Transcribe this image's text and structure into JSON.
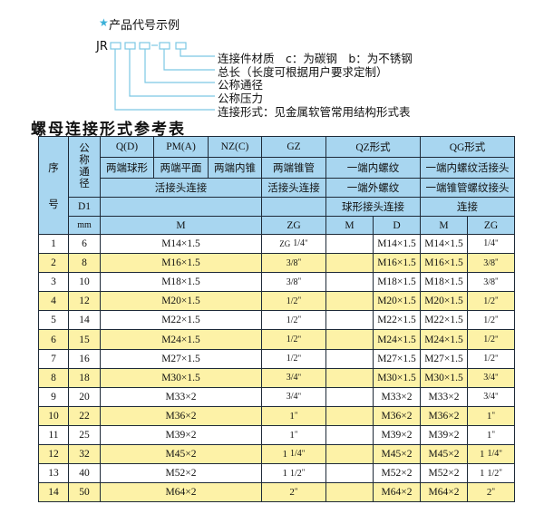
{
  "example": {
    "heading": "产品代号示例",
    "code_prefix": "JR",
    "labels": [
      "连接件材质　c：为碳钢　b：为不锈钢",
      "总长（长度可根据用户要求定制）",
      "公称通径",
      "公称压力",
      "连接形式：见金属软管常用结构形式表"
    ],
    "accent_color": "#3ab0d8"
  },
  "table_title": "螺母连接形式参考表",
  "header": {
    "seq": "序",
    "seq2": "号",
    "dn": "公称通径",
    "d1": "D1",
    "mm": "mm",
    "qd": "Q(D)",
    "pma": "PM(A)",
    "nzc": "NZ(C)",
    "gz": "GZ",
    "qz": "QZ形式",
    "qg": "QG形式",
    "qd_desc": "两端球形",
    "pma_desc": "两端平面",
    "nzc_desc": "两端内锥",
    "gz_desc": "两端锥管",
    "qz_desc": "一端内螺纹",
    "qg_desc": "一端内螺纹活接头",
    "union3": "活接头连接",
    "gz_union": "活接头连接",
    "qz_desc2": "一端外螺纹",
    "qg_desc2": "一端锥管螺纹接头",
    "qz_desc3": "球形接头连接",
    "qg_desc3": "连接",
    "m": "M",
    "zg": "ZG",
    "qz_m": "M",
    "qz_d": "D",
    "qg_m": "M",
    "qg_zg": "ZG"
  },
  "header_color": "#a8d6f0",
  "stripe_color": "#fdf2a7",
  "rows": [
    {
      "no": "1",
      "d1": "6",
      "m": "M14×1.5",
      "zg": {
        "whole": "ZG",
        "frac": "1/4"
      },
      "qz_m": "",
      "qz_d": "M14×1.5",
      "qg_m": "M14×1.5",
      "qg_zg": {
        "whole": "",
        "frac": "1/4"
      }
    },
    {
      "no": "2",
      "d1": "8",
      "m": "M16×1.5",
      "zg": {
        "whole": "",
        "frac": "3/8"
      },
      "qz_m": "",
      "qz_d": "M16×1.5",
      "qg_m": "M16×1.5",
      "qg_zg": {
        "whole": "",
        "frac": "3/8"
      }
    },
    {
      "no": "3",
      "d1": "10",
      "m": "M18×1.5",
      "zg": {
        "whole": "",
        "frac": "3/8"
      },
      "qz_m": "",
      "qz_d": "M18×1.5",
      "qg_m": "M18×1.5",
      "qg_zg": {
        "whole": "",
        "frac": "3/8"
      }
    },
    {
      "no": "4",
      "d1": "12",
      "m": "M20×1.5",
      "zg": {
        "whole": "",
        "frac": "1/2"
      },
      "qz_m": "",
      "qz_d": "M20×1.5",
      "qg_m": "M20×1.5",
      "qg_zg": {
        "whole": "",
        "frac": "1/2"
      }
    },
    {
      "no": "5",
      "d1": "14",
      "m": "M22×1.5",
      "zg": {
        "whole": "",
        "frac": "1/2"
      },
      "qz_m": "",
      "qz_d": "M22×1.5",
      "qg_m": "M22×1.5",
      "qg_zg": {
        "whole": "",
        "frac": "1/2"
      }
    },
    {
      "no": "6",
      "d1": "15",
      "m": "M24×1.5",
      "zg": {
        "whole": "",
        "frac": "1/2"
      },
      "qz_m": "",
      "qz_d": "M24×1.5",
      "qg_m": "M24×1.5",
      "qg_zg": {
        "whole": "",
        "frac": "1/2"
      }
    },
    {
      "no": "7",
      "d1": "16",
      "m": "M27×1.5",
      "zg": {
        "whole": "",
        "frac": "1/2"
      },
      "qz_m": "",
      "qz_d": "M27×1.5",
      "qg_m": "M27×1.5",
      "qg_zg": {
        "whole": "",
        "frac": "1/2"
      }
    },
    {
      "no": "8",
      "d1": "18",
      "m": "M30×1.5",
      "zg": {
        "whole": "",
        "frac": "3/4"
      },
      "qz_m": "",
      "qz_d": "M30×1.5",
      "qg_m": "M30×1.5",
      "qg_zg": {
        "whole": "",
        "frac": "3/4"
      }
    },
    {
      "no": "9",
      "d1": "20",
      "m": "M33×2",
      "zg": {
        "whole": "",
        "frac": "3/4"
      },
      "qz_m": "",
      "qz_d": "M33×2",
      "qg_m": "M33×2",
      "qg_zg": {
        "whole": "",
        "frac": "3/4"
      }
    },
    {
      "no": "10",
      "d1": "22",
      "m": "M36×2",
      "zg": {
        "whole": "1",
        "frac": ""
      },
      "qz_m": "",
      "qz_d": "M36×2",
      "qg_m": "M36×2",
      "qg_zg": {
        "whole": "1",
        "frac": ""
      }
    },
    {
      "no": "11",
      "d1": "25",
      "m": "M39×2",
      "zg": {
        "whole": "1",
        "frac": ""
      },
      "qz_m": "",
      "qz_d": "M39×2",
      "qg_m": "M39×2",
      "qg_zg": {
        "whole": "1",
        "frac": ""
      }
    },
    {
      "no": "12",
      "d1": "32",
      "m": "M45×2",
      "zg": {
        "whole": "1",
        "frac": "1/4"
      },
      "qz_m": "",
      "qz_d": "M45×2",
      "qg_m": "M45×2",
      "qg_zg": {
        "whole": "1",
        "frac": "1/4"
      }
    },
    {
      "no": "13",
      "d1": "40",
      "m": "M52×2",
      "zg": {
        "whole": "1",
        "frac": "1/2"
      },
      "qz_m": "",
      "qz_d": "M52×2",
      "qg_m": "M52×2",
      "qg_zg": {
        "whole": "1",
        "frac": "1/2"
      }
    },
    {
      "no": "14",
      "d1": "50",
      "m": "M64×2",
      "zg": {
        "whole": "2",
        "frac": ""
      },
      "qz_m": "",
      "qz_d": "M64×2",
      "qg_m": "M64×2",
      "qg_zg": {
        "whole": "2",
        "frac": ""
      }
    }
  ]
}
